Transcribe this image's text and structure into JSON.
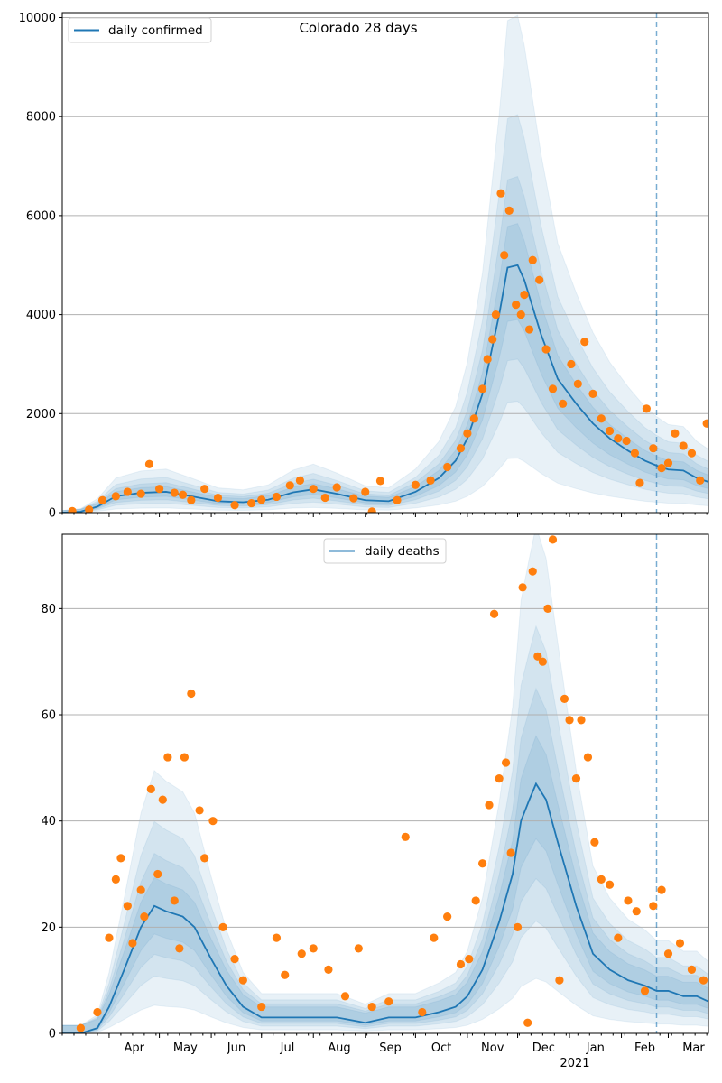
{
  "figure": {
    "title": "Colorado 28 days",
    "year_label": "2021"
  },
  "colors": {
    "line": "#1f77b4",
    "points": "#ff7f0e",
    "band": "#1f77b4",
    "grid": "#b0b0b0",
    "vline": "#1f77b4"
  },
  "chart_data": [
    {
      "type": "line",
      "title": "Colorado 28 days",
      "xlabel": "",
      "ylabel": "",
      "x_ticks": [
        "Apr",
        "May",
        "Jun",
        "Jul",
        "Aug",
        "Sep",
        "Oct",
        "Nov",
        "Dec",
        "Jan",
        "Feb",
        "Mar"
      ],
      "x_range": [
        "2020-03-04",
        "2021-03-25"
      ],
      "vertical_line": "2021-02-22",
      "ylim": [
        0,
        10100
      ],
      "y_ticks": [
        0,
        2000,
        4000,
        6000,
        8000,
        10000
      ],
      "grid": "y",
      "legend": {
        "position": "top-left",
        "entries": [
          "daily confirmed"
        ]
      },
      "series": [
        {
          "name": "daily confirmed",
          "kind": "model-line",
          "x": [
            "2020-03-04",
            "2020-03-15",
            "2020-03-25",
            "2020-04-05",
            "2020-04-20",
            "2020-05-05",
            "2020-05-20",
            "2020-06-05",
            "2020-06-20",
            "2020-07-05",
            "2020-07-20",
            "2020-08-01",
            "2020-08-15",
            "2020-09-01",
            "2020-09-15",
            "2020-10-01",
            "2020-10-15",
            "2020-10-25",
            "2020-11-01",
            "2020-11-10",
            "2020-11-20",
            "2020-11-25",
            "2020-12-01",
            "2020-12-05",
            "2020-12-15",
            "2020-12-25",
            "2021-01-05",
            "2021-01-15",
            "2021-01-25",
            "2021-02-05",
            "2021-02-15",
            "2021-02-22",
            "2021-03-01",
            "2021-03-10",
            "2021-03-18",
            "2021-03-25"
          ],
          "values": [
            0,
            20,
            120,
            330,
            400,
            420,
            330,
            230,
            210,
            260,
            410,
            470,
            380,
            250,
            230,
            420,
            700,
            1050,
            1500,
            2400,
            4000,
            4950,
            5000,
            4700,
            3600,
            2700,
            2200,
            1800,
            1500,
            1250,
            1050,
            950,
            870,
            850,
            700,
            620
          ]
        },
        {
          "name": "",
          "kind": "observed-points",
          "x": [
            "2020-03-10",
            "2020-03-20",
            "2020-03-28",
            "2020-04-05",
            "2020-04-12",
            "2020-04-20",
            "2020-04-25",
            "2020-05-01",
            "2020-05-10",
            "2020-05-15",
            "2020-05-20",
            "2020-05-28",
            "2020-06-05",
            "2020-06-15",
            "2020-06-25",
            "2020-07-01",
            "2020-07-10",
            "2020-07-18",
            "2020-07-24",
            "2020-08-01",
            "2020-08-08",
            "2020-08-15",
            "2020-08-25",
            "2020-09-01",
            "2020-09-05",
            "2020-09-10",
            "2020-09-20",
            "2020-10-01",
            "2020-10-10",
            "2020-10-20",
            "2020-10-28",
            "2020-11-01",
            "2020-11-05",
            "2020-11-10",
            "2020-11-13",
            "2020-11-16",
            "2020-11-18",
            "2020-11-21",
            "2020-11-23",
            "2020-11-26",
            "2020-11-30",
            "2020-12-03",
            "2020-12-05",
            "2020-12-08",
            "2020-12-10",
            "2020-12-14",
            "2020-12-18",
            "2020-12-22",
            "2020-12-28",
            "2021-01-02",
            "2021-01-06",
            "2021-01-10",
            "2021-01-15",
            "2021-01-20",
            "2021-01-25",
            "2021-01-30",
            "2021-02-04",
            "2021-02-09",
            "2021-02-12",
            "2021-02-16",
            "2021-02-20",
            "2021-02-25",
            "2021-03-01",
            "2021-03-05",
            "2021-03-10",
            "2021-03-15",
            "2021-03-20",
            "2021-03-24"
          ],
          "values": [
            30,
            60,
            250,
            330,
            420,
            380,
            980,
            480,
            400,
            360,
            250,
            480,
            300,
            150,
            190,
            260,
            320,
            550,
            650,
            480,
            300,
            510,
            290,
            420,
            20,
            640,
            250,
            560,
            650,
            920,
            1300,
            1600,
            1900,
            2500,
            3100,
            3500,
            4000,
            6450,
            5200,
            6100,
            4200,
            4000,
            4400,
            3700,
            5100,
            4700,
            3300,
            2500,
            2200,
            3000,
            2600,
            3450,
            2400,
            1900,
            1650,
            1500,
            1450,
            1200,
            600,
            2100,
            1300,
            900,
            1000,
            1600,
            1350,
            1200,
            650,
            1800
          ]
        }
      ]
    },
    {
      "type": "line",
      "title": "",
      "xlabel": "",
      "ylabel": "",
      "x_ticks": [
        "Apr",
        "May",
        "Jun",
        "Jul",
        "Aug",
        "Sep",
        "Oct",
        "Nov",
        "Dec",
        "Jan",
        "Feb",
        "Mar"
      ],
      "x_range": [
        "2020-03-04",
        "2021-03-25"
      ],
      "vertical_line": "2021-02-22",
      "ylim": [
        0,
        94
      ],
      "y_ticks": [
        0,
        20,
        40,
        60,
        80
      ],
      "grid": "y",
      "legend": {
        "position": "top-center",
        "entries": [
          "daily deaths"
        ]
      },
      "series": [
        {
          "name": "daily deaths",
          "kind": "model-line",
          "x": [
            "2020-03-04",
            "2020-03-15",
            "2020-03-25",
            "2020-04-01",
            "2020-04-10",
            "2020-04-20",
            "2020-04-28",
            "2020-05-05",
            "2020-05-15",
            "2020-05-22",
            "2020-06-01",
            "2020-06-10",
            "2020-06-20",
            "2020-07-01",
            "2020-07-15",
            "2020-08-01",
            "2020-08-15",
            "2020-09-01",
            "2020-09-15",
            "2020-10-01",
            "2020-10-15",
            "2020-10-25",
            "2020-11-01",
            "2020-11-10",
            "2020-11-20",
            "2020-11-28",
            "2020-12-03",
            "2020-12-08",
            "2020-12-12",
            "2020-12-18",
            "2020-12-25",
            "2021-01-05",
            "2021-01-15",
            "2021-01-25",
            "2021-02-05",
            "2021-02-15",
            "2021-02-22",
            "2021-03-01",
            "2021-03-10",
            "2021-03-18",
            "2021-03-25"
          ],
          "values": [
            0,
            0,
            1,
            5,
            12,
            20,
            24,
            23,
            22,
            20,
            14,
            9,
            5,
            3,
            3,
            3,
            3,
            2,
            3,
            3,
            4,
            5,
            7,
            12,
            21,
            30,
            40,
            44,
            47,
            44,
            36,
            24,
            15,
            12,
            10,
            9,
            8,
            8,
            7,
            7,
            6
          ]
        },
        {
          "name": "",
          "kind": "observed-points",
          "x": [
            "2020-03-15",
            "2020-03-25",
            "2020-04-01",
            "2020-04-05",
            "2020-04-08",
            "2020-04-12",
            "2020-04-15",
            "2020-04-20",
            "2020-04-22",
            "2020-04-26",
            "2020-04-30",
            "2020-05-03",
            "2020-05-06",
            "2020-05-10",
            "2020-05-13",
            "2020-05-16",
            "2020-05-20",
            "2020-05-25",
            "2020-05-28",
            "2020-06-02",
            "2020-06-08",
            "2020-06-15",
            "2020-06-20",
            "2020-07-01",
            "2020-07-10",
            "2020-07-15",
            "2020-07-25",
            "2020-08-01",
            "2020-08-10",
            "2020-08-20",
            "2020-08-28",
            "2020-09-05",
            "2020-09-15",
            "2020-09-25",
            "2020-10-05",
            "2020-10-12",
            "2020-10-20",
            "2020-10-28",
            "2020-11-02",
            "2020-11-06",
            "2020-11-10",
            "2020-11-14",
            "2020-11-17",
            "2020-11-20",
            "2020-11-24",
            "2020-11-27",
            "2020-12-01",
            "2020-12-04",
            "2020-12-07",
            "2020-12-10",
            "2020-12-13",
            "2020-12-16",
            "2020-12-19",
            "2020-12-22",
            "2020-12-26",
            "2020-12-29",
            "2021-01-01",
            "2021-01-05",
            "2021-01-08",
            "2021-01-12",
            "2021-01-16",
            "2021-01-20",
            "2021-01-25",
            "2021-01-30",
            "2021-02-05",
            "2021-02-10",
            "2021-02-15",
            "2021-02-20",
            "2021-02-25",
            "2021-03-01",
            "2021-03-08",
            "2021-03-15",
            "2021-03-22"
          ],
          "values": [
            1,
            4,
            18,
            29,
            33,
            24,
            17,
            27,
            22,
            46,
            30,
            44,
            52,
            25,
            16,
            52,
            64,
            42,
            33,
            40,
            20,
            14,
            10,
            5,
            18,
            11,
            15,
            16,
            12,
            7,
            16,
            5,
            6,
            37,
            4,
            18,
            22,
            13,
            14,
            25,
            32,
            43,
            79,
            48,
            51,
            34,
            20,
            84,
            2,
            87,
            71,
            70,
            80,
            93,
            10,
            63,
            59,
            48,
            59,
            52,
            36,
            29,
            28,
            18,
            25,
            23,
            8,
            24,
            27,
            15,
            17,
            12,
            10
          ]
        }
      ]
    }
  ]
}
